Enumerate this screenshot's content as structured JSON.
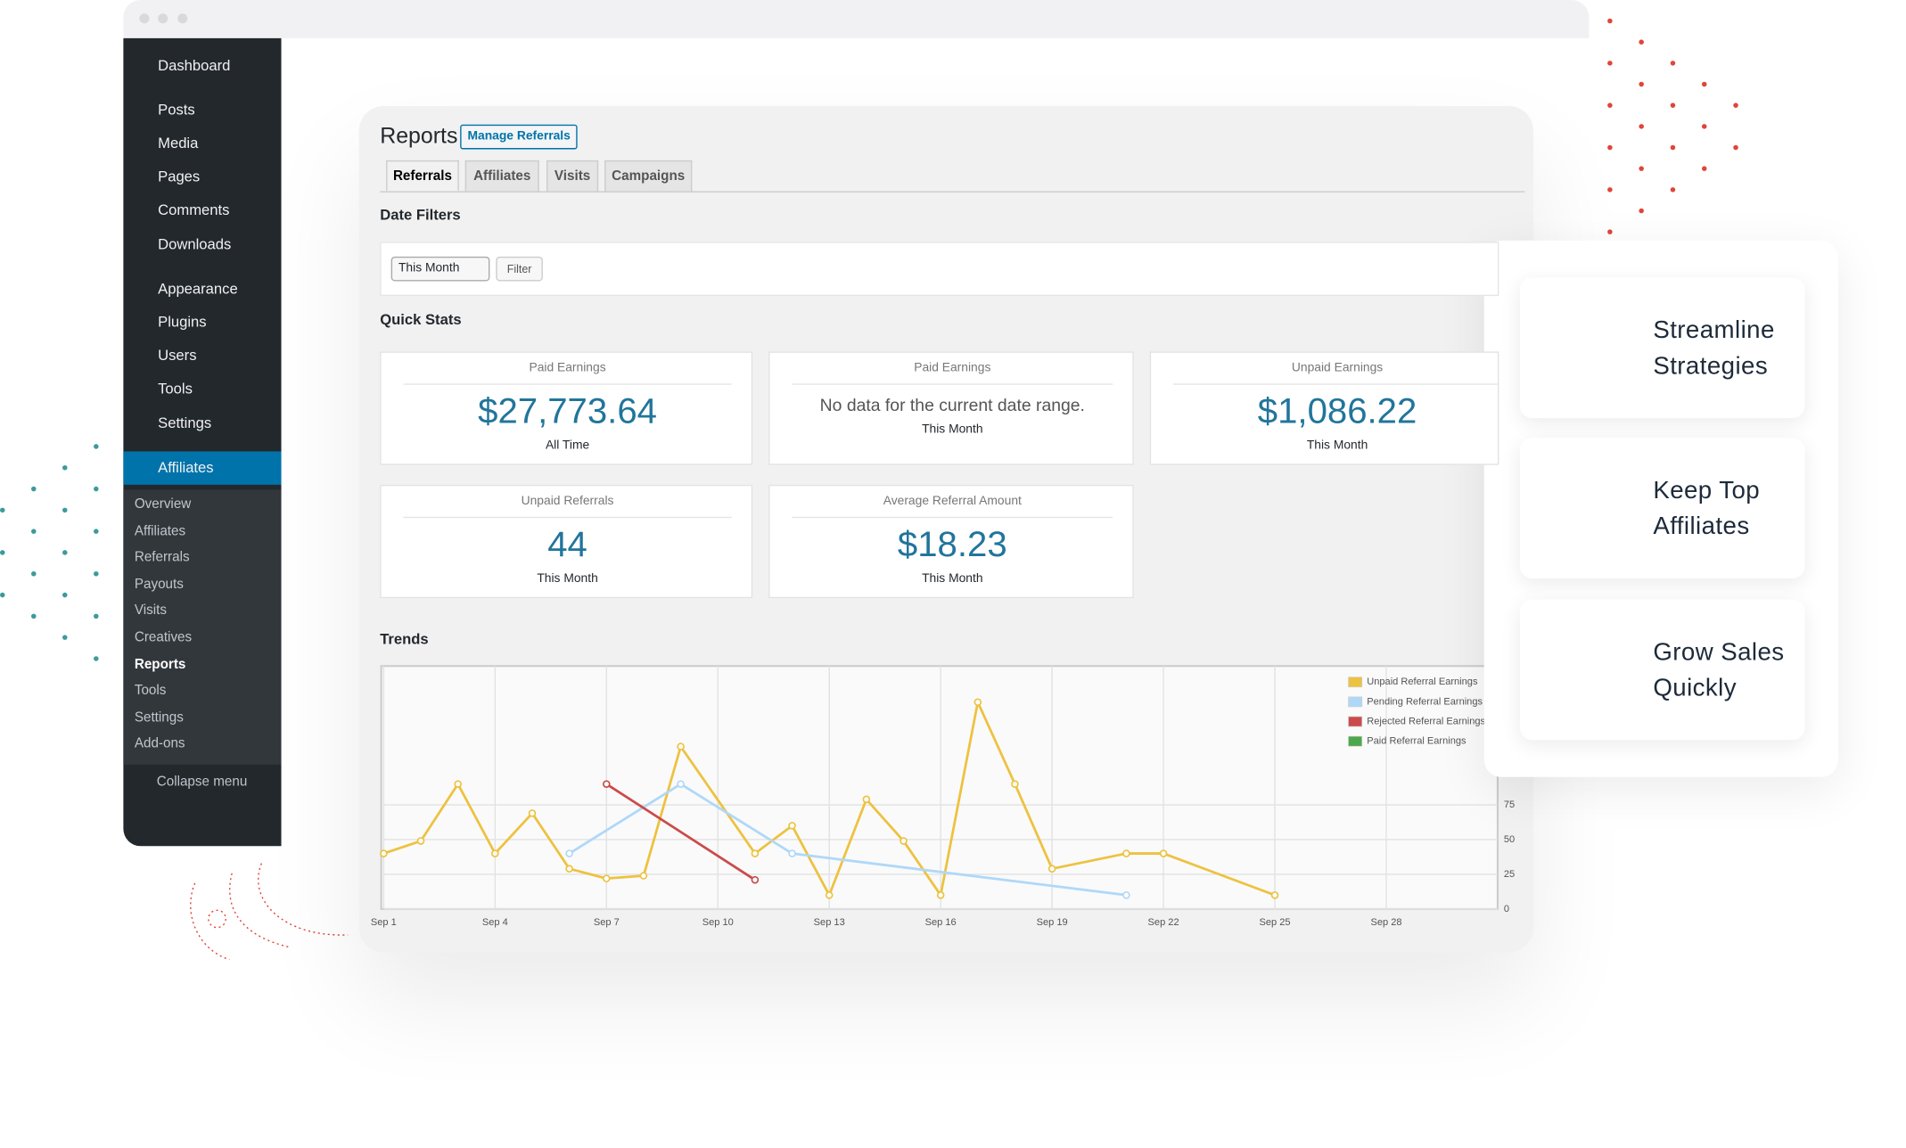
{
  "sidebar": {
    "menu": [
      "Dashboard",
      "Posts",
      "Media",
      "Pages",
      "Comments",
      "Downloads",
      "Appearance",
      "Plugins",
      "Users",
      "Tools",
      "Settings",
      "Affiliates"
    ],
    "submenu": [
      "Overview",
      "Affiliates",
      "Referrals",
      "Payouts",
      "Visits",
      "Creatives",
      "Reports",
      "Tools",
      "Settings",
      "Add-ons"
    ],
    "collapse": "Collapse menu"
  },
  "header": {
    "title": "Reports",
    "button": "Manage Referrals"
  },
  "tabs": [
    "Referrals",
    "Affiliates",
    "Visits",
    "Campaigns"
  ],
  "date_filters": {
    "heading": "Date Filters",
    "select": "This Month",
    "button": "Filter"
  },
  "quick_stats": {
    "heading": "Quick Stats",
    "cards": [
      {
        "title": "Paid Earnings",
        "value": "$27,773.64",
        "period": "All Time"
      },
      {
        "title": "Paid Earnings",
        "message": "No data for the current date range.",
        "period": "This Month"
      },
      {
        "title": "Unpaid Earnings",
        "value": "$1,086.22",
        "period": "This Month"
      },
      {
        "title": "Unpaid Referrals",
        "value": "44",
        "period": "This Month"
      },
      {
        "title": "Average Referral Amount",
        "value": "$18.23",
        "period": "This Month"
      }
    ]
  },
  "chart_data": {
    "type": "line",
    "title": "Trends",
    "xlim": [
      1,
      31
    ],
    "xticks": [
      {
        "value": 1,
        "label": "Sep 1"
      },
      {
        "value": 4,
        "label": "Sep 4"
      },
      {
        "value": 7,
        "label": "Sep 7"
      },
      {
        "value": 10,
        "label": "Sep 10"
      },
      {
        "value": 13,
        "label": "Sep 13"
      },
      {
        "value": 16,
        "label": "Sep 16"
      },
      {
        "value": 19,
        "label": "Sep 19"
      },
      {
        "value": 22,
        "label": "Sep 22"
      },
      {
        "value": 25,
        "label": "Sep 25"
      },
      {
        "value": 28,
        "label": "Sep 28"
      }
    ],
    "ylim": [
      0,
      175
    ],
    "yticks": [
      0,
      25,
      50,
      75
    ],
    "grid": true,
    "legend": "upper right",
    "series": [
      {
        "name": "Unpaid Referral Earnings",
        "color": "#edc240",
        "x": [
          1,
          2,
          3,
          4,
          5,
          6,
          7,
          8,
          9,
          11,
          12,
          13,
          14,
          15,
          16,
          17,
          18,
          19,
          21,
          22,
          25
        ],
        "values": [
          40,
          49,
          90,
          40,
          69,
          29,
          22,
          24,
          117,
          40,
          60,
          10,
          79,
          49,
          10,
          149,
          90,
          29,
          40,
          40,
          10
        ]
      },
      {
        "name": "Pending Referral Earnings",
        "color": "#afd8f8",
        "x": [
          6,
          9,
          12,
          21
        ],
        "values": [
          40,
          90,
          40,
          10
        ]
      },
      {
        "name": "Rejected Referral Earnings",
        "color": "#cb4b4b",
        "x": [
          7,
          11
        ],
        "values": [
          90,
          21
        ]
      },
      {
        "name": "Paid Referral Earnings",
        "color": "#4da74d",
        "x": [],
        "values": []
      }
    ]
  },
  "features": [
    {
      "lines": [
        "Streamline",
        "Strategies"
      ]
    },
    {
      "lines": [
        "Keep Top",
        "Affiliates"
      ]
    },
    {
      "lines": [
        "Grow Sales",
        "Quickly"
      ]
    }
  ]
}
